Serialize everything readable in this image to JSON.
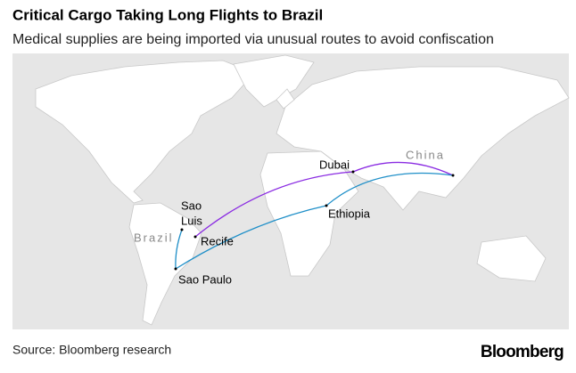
{
  "header": {
    "title": "Critical Cargo Taking Long Flights to Brazil",
    "subtitle": "Medical supplies are being imported via unusual routes to avoid confiscation"
  },
  "map": {
    "places": {
      "sao_luis": [
        "Sao",
        "Luis"
      ],
      "recife": "Recife",
      "sao_paulo": "Sao Paulo",
      "dubai": "Dubai",
      "ethiopia": "Ethiopia"
    },
    "countries": {
      "brazil": "Brazil",
      "china": "China"
    }
  },
  "footer": {
    "source": "Source: Bloomberg research",
    "logo": "Bloomberg"
  }
}
